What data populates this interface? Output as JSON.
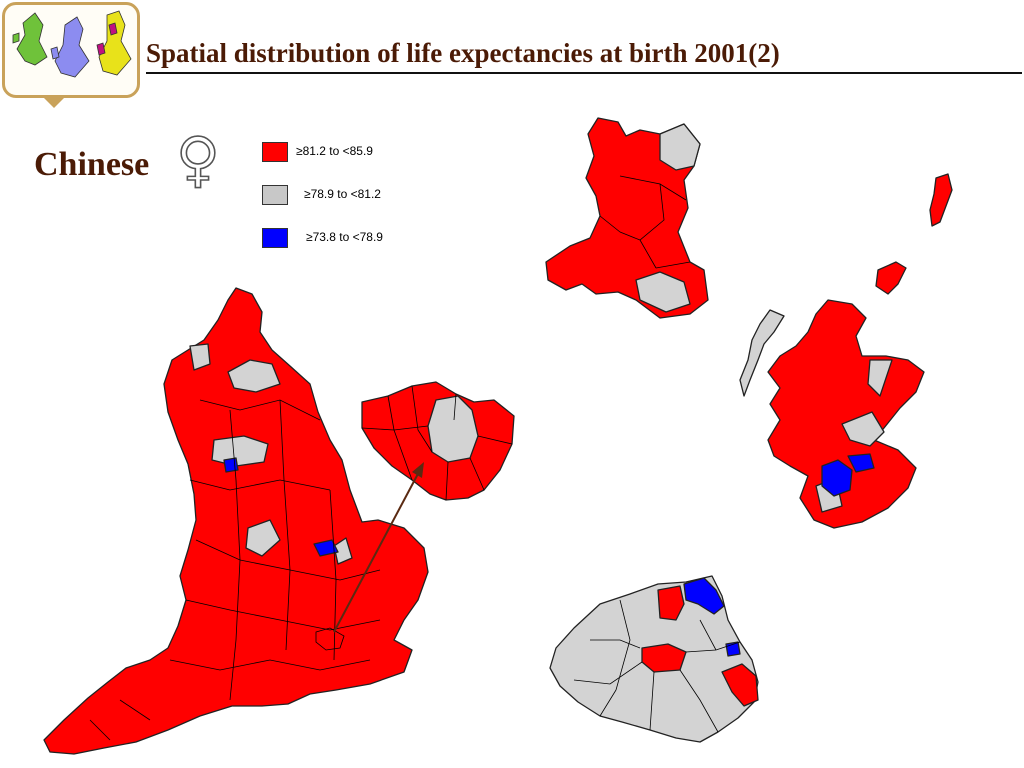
{
  "title": "Spatial distribution of life expectancies at birth 2001(2)",
  "subtitle": "Chinese",
  "sex_symbol": "♀",
  "legend": [
    {
      "label": "≥81.2 to <85.9",
      "color": "#ff0000"
    },
    {
      "label": "≥78.9 to <81.2",
      "color": "#c8c8c8"
    },
    {
      "label": "≥73.8 to <78.9",
      "color": "#0000ff"
    }
  ],
  "colors": {
    "title_text": "#4b1b06",
    "logo_frame": "#c9a25a",
    "map_red": "#ff0000",
    "map_grey": "#d3d3d3",
    "map_blue": "#0000ff"
  },
  "map": {
    "regions": [
      {
        "name": "wales",
        "category": 0
      },
      {
        "name": "scotland",
        "category": 0
      },
      {
        "name": "england",
        "category": 0
      },
      {
        "name": "london-inset",
        "category": 0
      },
      {
        "name": "northern-ireland",
        "category": 1
      }
    ]
  }
}
